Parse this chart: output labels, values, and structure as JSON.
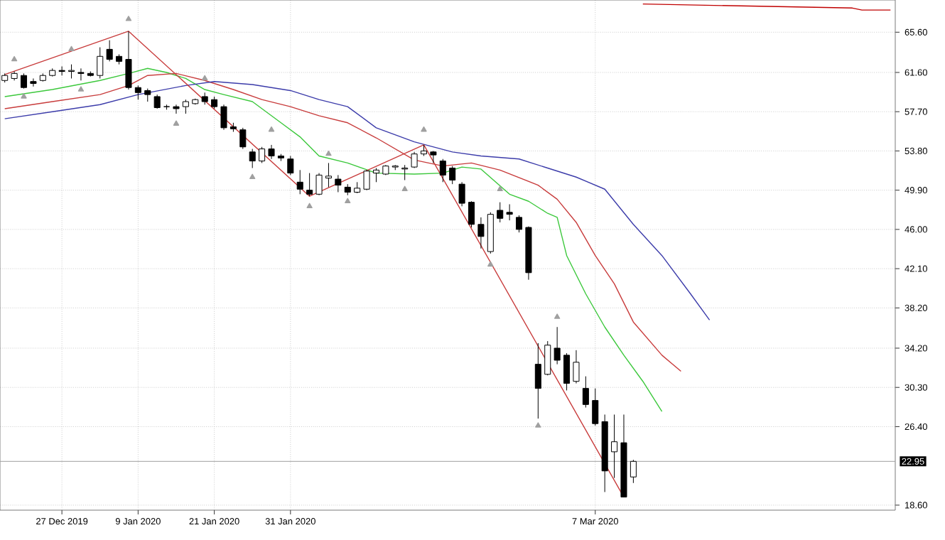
{
  "chart_data": {
    "type": "candlestick",
    "categories": [
      null,
      null,
      null,
      null,
      null,
      null,
      "27 Dec 2019",
      null,
      null,
      null,
      null,
      null,
      null,
      null,
      "9 Jan 2020",
      null,
      null,
      null,
      null,
      null,
      null,
      null,
      "21 Jan 2020",
      null,
      null,
      null,
      null,
      null,
      null,
      null,
      "31 Jan 2020",
      null,
      null,
      null,
      null,
      null,
      null,
      null,
      null,
      null,
      null,
      null,
      null,
      null,
      null,
      null,
      null,
      null,
      null,
      null,
      null,
      null,
      null,
      null,
      null,
      null,
      null,
      null,
      null,
      null,
      null,
      null,
      "7 Mar 2020",
      null,
      null,
      null,
      null,
      null,
      null,
      null,
      null,
      null,
      null,
      null,
      null,
      null,
      null,
      null,
      null,
      null,
      null,
      null,
      null,
      null,
      null,
      null,
      null,
      null,
      null,
      null,
      null,
      null,
      null,
      null
    ],
    "ohlc": [
      [
        60.8,
        61.5,
        60.6,
        61.3
      ],
      [
        61.0,
        61.7,
        60.8,
        61.5
      ],
      [
        61.3,
        61.5,
        60.0,
        60.1
      ],
      [
        60.7,
        61.0,
        60.2,
        60.5
      ],
      [
        60.8,
        61.5,
        60.7,
        61.3
      ],
      [
        61.3,
        62.0,
        61.2,
        61.8
      ],
      [
        61.8,
        62.2,
        61.3,
        61.7
      ],
      [
        61.7,
        62.4,
        61.0,
        61.8
      ],
      [
        61.6,
        62.0,
        60.8,
        61.5
      ],
      [
        61.5,
        61.7,
        61.2,
        61.3
      ],
      [
        61.3,
        64.1,
        61.0,
        63.2
      ],
      [
        63.9,
        64.8,
        62.7,
        62.9
      ],
      [
        63.2,
        63.4,
        62.4,
        62.7
      ],
      [
        62.9,
        65.7,
        59.9,
        60.1
      ],
      [
        60.1,
        60.3,
        58.9,
        59.6
      ],
      [
        59.8,
        60.0,
        58.7,
        59.4
      ],
      [
        59.2,
        59.4,
        58.0,
        58.1
      ],
      [
        58.2,
        58.4,
        57.9,
        58.2
      ],
      [
        58.2,
        58.4,
        57.5,
        58.0
      ],
      [
        58.2,
        58.9,
        57.5,
        58.7
      ],
      [
        58.5,
        59.0,
        58.4,
        58.9
      ],
      [
        59.2,
        59.6,
        58.4,
        58.7
      ],
      [
        58.9,
        59.2,
        58.0,
        58.2
      ],
      [
        58.2,
        58.4,
        55.9,
        56.1
      ],
      [
        56.2,
        56.6,
        55.7,
        56.0
      ],
      [
        55.9,
        56.1,
        54.0,
        54.2
      ],
      [
        53.7,
        54.0,
        52.1,
        52.8
      ],
      [
        52.8,
        54.2,
        52.6,
        54.0
      ],
      [
        54.0,
        54.4,
        53.0,
        53.3
      ],
      [
        53.3,
        53.5,
        52.8,
        53.1
      ],
      [
        53.0,
        53.3,
        51.4,
        51.6
      ],
      [
        50.7,
        51.9,
        49.5,
        50.0
      ],
      [
        49.9,
        51.6,
        49.3,
        49.5
      ],
      [
        49.5,
        51.6,
        49.4,
        51.4
      ],
      [
        51.1,
        52.6,
        50.2,
        51.3
      ],
      [
        51.0,
        51.4,
        49.7,
        50.4
      ],
      [
        50.2,
        50.5,
        49.4,
        49.7
      ],
      [
        49.7,
        50.7,
        49.6,
        50.1
      ],
      [
        50.0,
        51.9,
        49.9,
        51.8
      ],
      [
        51.6,
        52.1,
        50.7,
        51.9
      ],
      [
        51.5,
        52.4,
        51.4,
        52.3
      ],
      [
        52.2,
        52.4,
        51.9,
        52.3
      ],
      [
        52.0,
        52.4,
        50.9,
        52.1
      ],
      [
        52.2,
        53.7,
        52.1,
        53.5
      ],
      [
        53.5,
        54.4,
        53.3,
        53.8
      ],
      [
        53.7,
        53.8,
        52.6,
        53.4
      ],
      [
        52.8,
        53.0,
        50.7,
        51.4
      ],
      [
        52.1,
        52.3,
        50.5,
        50.9
      ],
      [
        50.5,
        50.7,
        48.3,
        48.6
      ],
      [
        48.7,
        48.8,
        46.2,
        46.5
      ],
      [
        46.5,
        47.2,
        44.1,
        45.3
      ],
      [
        43.8,
        47.7,
        43.6,
        47.5
      ],
      [
        47.9,
        48.7,
        46.7,
        47.1
      ],
      [
        47.7,
        48.5,
        46.9,
        47.5
      ],
      [
        47.2,
        47.4,
        45.7,
        46.0
      ],
      [
        46.2,
        46.3,
        41.0,
        41.7
      ],
      [
        32.6,
        34.7,
        27.2,
        30.2
      ],
      [
        31.6,
        34.9,
        31.5,
        34.5
      ],
      [
        34.2,
        36.3,
        32.6,
        33.0
      ],
      [
        33.5,
        33.7,
        30.0,
        30.7
      ],
      [
        30.9,
        34.0,
        30.7,
        32.8
      ],
      [
        30.2,
        31.4,
        28.3,
        28.6
      ],
      [
        29.0,
        30.2,
        26.5,
        26.7
      ],
      [
        26.9,
        27.6,
        19.9,
        22.0
      ],
      [
        23.9,
        27.6,
        21.3,
        24.9
      ],
      [
        24.8,
        27.6,
        19.4,
        19.4
      ],
      [
        21.4,
        23.1,
        20.8,
        22.95
      ],
      null,
      null,
      null,
      null,
      null,
      null,
      null,
      null,
      null,
      null,
      null,
      null,
      null,
      null,
      null,
      null,
      null,
      null,
      null,
      null,
      null,
      null,
      null,
      null,
      null,
      null,
      null
    ],
    "series": [
      {
        "type": "line",
        "color": "#3cc83c",
        "values": [
          59.2,
          null,
          null,
          null,
          null,
          59.9,
          null,
          null,
          null,
          null,
          60.8,
          null,
          null,
          61.5,
          null,
          62.0,
          null,
          61.6,
          null,
          61.0,
          null,
          59.9,
          null,
          59.4,
          null,
          null,
          58.7,
          null,
          null,
          56.6,
          null,
          55.2,
          null,
          53.3,
          null,
          null,
          52.6,
          null,
          null,
          51.6,
          null,
          null,
          null,
          51.5,
          null,
          null,
          51.6,
          null,
          52.2,
          null,
          52.0,
          null,
          null,
          49.5,
          null,
          48.8,
          null,
          47.6,
          47.2,
          43.4,
          null,
          39.6,
          null,
          36.3,
          null,
          33.5,
          null,
          30.9,
          null,
          27.9,
          null,
          null,
          null,
          null,
          null,
          null,
          null,
          null,
          null,
          null,
          null,
          null,
          null,
          null,
          null,
          null,
          null,
          null,
          null,
          null,
          null,
          null,
          null,
          null
        ]
      },
      {
        "type": "line",
        "color": "#c83c3c",
        "values": [
          58.0,
          null,
          null,
          null,
          null,
          58.7,
          null,
          null,
          null,
          null,
          59.4,
          null,
          null,
          60.3,
          null,
          61.3,
          null,
          null,
          61.5,
          null,
          null,
          60.8,
          null,
          null,
          59.9,
          null,
          null,
          58.9,
          null,
          null,
          58.2,
          null,
          null,
          57.3,
          null,
          null,
          56.6,
          null,
          null,
          55.1,
          null,
          null,
          null,
          52.9,
          null,
          null,
          52.3,
          null,
          null,
          52.6,
          null,
          null,
          51.9,
          null,
          null,
          null,
          50.4,
          null,
          49.0,
          null,
          46.7,
          null,
          43.4,
          null,
          40.6,
          null,
          36.8,
          null,
          null,
          33.5,
          null,
          31.9,
          null,
          null,
          null,
          null,
          null,
          null,
          null,
          null,
          null,
          null,
          null,
          null,
          null,
          null,
          null,
          null,
          null,
          null,
          null,
          null,
          null,
          null
        ]
      },
      {
        "type": "line",
        "color": "#3c3caa",
        "values": [
          57.0,
          null,
          null,
          null,
          null,
          57.7,
          null,
          null,
          null,
          null,
          58.4,
          null,
          null,
          null,
          59.4,
          null,
          null,
          null,
          null,
          60.3,
          null,
          null,
          60.7,
          null,
          null,
          null,
          60.4,
          null,
          null,
          null,
          59.8,
          null,
          null,
          58.9,
          null,
          null,
          58.2,
          null,
          null,
          56.1,
          null,
          null,
          null,
          54.7,
          null,
          null,
          null,
          53.7,
          null,
          null,
          53.3,
          null,
          null,
          null,
          53.0,
          null,
          null,
          52.1,
          null,
          null,
          51.2,
          null,
          null,
          50.0,
          null,
          null,
          46.5,
          null,
          null,
          43.4,
          null,
          null,
          39.6,
          null,
          37.0,
          null,
          null,
          null,
          null,
          null,
          null,
          null,
          null,
          null,
          null,
          null,
          null,
          null,
          null,
          null,
          null,
          null,
          null,
          null
        ]
      },
      {
        "type": "line",
        "color": "#c83c3c",
        "values": [
          61.4,
          null,
          null,
          null,
          null,
          null,
          null,
          null,
          null,
          null,
          null,
          null,
          null,
          65.7,
          null,
          null,
          null,
          null,
          null,
          null,
          null,
          null,
          null,
          null,
          null,
          null,
          null,
          null,
          null,
          null,
          null,
          null,
          49.3,
          null,
          null,
          null,
          null,
          null,
          null,
          null,
          null,
          null,
          null,
          null,
          54.4,
          null,
          null,
          null,
          null,
          null,
          null,
          null,
          null,
          null,
          null,
          null,
          null,
          null,
          null,
          null,
          null,
          null,
          null,
          null,
          null,
          19.4,
          null,
          null,
          null,
          null,
          null,
          null,
          null,
          null,
          null,
          null,
          null,
          null,
          null,
          null,
          null,
          null,
          null,
          null,
          null,
          null,
          null,
          null,
          null,
          null,
          null,
          null,
          null,
          null
        ]
      },
      {
        "type": "line",
        "color": "#c00000",
        "values": [
          null,
          null,
          null,
          null,
          null,
          null,
          null,
          null,
          null,
          null,
          null,
          null,
          null,
          null,
          null,
          null,
          null,
          null,
          null,
          null,
          null,
          null,
          null,
          null,
          null,
          null,
          null,
          null,
          null,
          null,
          null,
          null,
          null,
          null,
          null,
          null,
          null,
          null,
          null,
          null,
          null,
          null,
          null,
          null,
          null,
          null,
          null,
          null,
          null,
          null,
          null,
          null,
          null,
          null,
          null,
          null,
          null,
          null,
          null,
          null,
          null,
          null,
          null,
          null,
          null,
          null,
          null,
          68.4,
          null,
          null,
          null,
          null,
          null,
          null,
          null,
          null,
          null,
          null,
          null,
          null,
          null,
          null,
          null,
          null,
          null,
          null,
          null,
          null,
          null,
          68.0,
          67.8,
          null,
          null,
          67.8
        ]
      },
      {
        "type": "scatter",
        "color": "#a0a0a0",
        "marker": "triangle",
        "values": [
          null,
          62.9,
          null,
          null,
          null,
          null,
          null,
          63.9,
          null,
          null,
          null,
          null,
          null,
          66.9,
          null,
          null,
          null,
          null,
          null,
          null,
          null,
          61.0,
          null,
          null,
          null,
          null,
          null,
          null,
          55.9,
          null,
          null,
          null,
          null,
          null,
          53.5,
          null,
          null,
          null,
          null,
          null,
          null,
          null,
          null,
          null,
          55.9,
          null,
          null,
          null,
          null,
          null,
          null,
          null,
          50.0,
          null,
          null,
          null,
          null,
          null,
          37.3,
          null,
          null,
          null,
          null,
          null,
          null,
          null,
          null,
          null,
          null,
          null,
          null,
          null,
          null,
          null,
          null,
          null,
          null,
          null,
          null,
          null,
          null,
          null,
          null,
          null,
          null,
          null,
          null,
          null,
          null,
          null,
          null,
          null,
          null,
          null
        ]
      },
      {
        "type": "scatter",
        "color": "#a0a0a0",
        "marker": "triangle",
        "values": [
          null,
          null,
          59.2,
          null,
          null,
          null,
          null,
          null,
          59.9,
          null,
          null,
          null,
          null,
          null,
          null,
          null,
          null,
          null,
          56.5,
          null,
          null,
          null,
          null,
          null,
          null,
          null,
          51.2,
          null,
          null,
          null,
          null,
          null,
          48.3,
          null,
          null,
          null,
          48.8,
          null,
          null,
          null,
          null,
          null,
          50.0,
          null,
          null,
          null,
          null,
          null,
          null,
          null,
          null,
          42.5,
          null,
          null,
          null,
          null,
          26.5,
          null,
          null,
          null,
          null,
          null,
          null,
          null,
          null,
          null,
          null,
          null,
          null,
          null,
          null,
          null,
          null,
          null,
          null,
          null,
          null,
          null,
          null,
          null,
          null,
          null,
          null,
          null,
          null,
          null,
          null,
          null,
          null,
          null,
          null,
          null,
          null,
          null
        ]
      }
    ],
    "ylim": [
      18.1,
      68.8
    ],
    "yticks": [
      {
        "value": 18.6,
        "label": "18.60"
      },
      {
        "value": 26.4,
        "label": "26.40"
      },
      {
        "value": 30.3,
        "label": "30.30"
      },
      {
        "value": 34.2,
        "label": "34.20"
      },
      {
        "value": 38.2,
        "label": "38.20"
      },
      {
        "value": 42.1,
        "label": "42.10"
      },
      {
        "value": 46.0,
        "label": "46.00"
      },
      {
        "value": 49.9,
        "label": "49.90"
      },
      {
        "value": 53.8,
        "label": "53.80"
      },
      {
        "value": 57.7,
        "label": "57.70"
      },
      {
        "value": 61.6,
        "label": "61.60"
      },
      {
        "value": 65.6,
        "label": "65.60"
      }
    ],
    "grid": true,
    "ref_lines": [
      {
        "axis": "y",
        "value": 22.95,
        "label": "22.95",
        "color": "#a0a0a0"
      }
    ]
  }
}
